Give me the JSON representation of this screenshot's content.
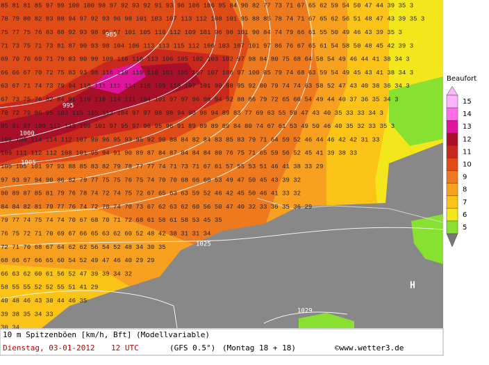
{
  "map": {
    "grid_rows": [
      "85 81 81 85 97 99 100 100 98 97 92 93 92 91 93 96 106 106 95 84 90 82 77 73 71 67 65 62 59 54 50 47 44 39 35 3",
      "78 79 80 82 83 88 94 97 92 93 96 98 101 103 107 113 112 108 101 95 88 85 78 74 71 67 65 62 56 51 48 47 43 39 35 3",
      "75 77 75 76 83 88 92 93 98 95 97 101 105 110 112 109 101 96 98 101 90 84 74 79 66 61 55 50 49 46 43 39 35 3",
      "71 73 75 71 73 81 87 90 93 98 104 106 113 113 115 112 106 103 107 101 97 86 76 67 65 61 54 58 50 48 45 42 39 3",
      "69 70 70 69 71 79 83 90 99 109 116 116 113 106 105 102 103 102 97 98 84 80 75 68 64 58 54 49 46 44 41 38 34 3",
      "66 66 67 70 72 75 83 93 98 116 119 119 110 101 105 107 107 106 97 100 85 79 74 68 63 59 54 49 45 43 41 38 34 3",
      "63 67 71 74 73 79 94 110 111 111 114 116 109 110 107 101 99 98 95 92 80 79 74 74 63 58 52 47 43 40 38 36 34 3",
      "67 73 75 76 82 84 91 110 118 114 111 104 101 97 97 96 98 94 92 88 86 79 72 65 60 54 49 44 40 37 36 35 34 3",
      "70 72 79 86 95 103 115 115 112 104 97 97 98 98 94 90 96 94 89 83 77 69 63 55 50 47 43 40 35 33 33 34 3",
      "85 91 97 109 112 113 108 101 97 95 97 96 95 96 91 89 89 89 89 84 80 74 67 61 53 49 50 46 40 35 32 33 35 3",
      "109 108 114 114 112 107 99 96 95 93 95 92 90 88 84 82 84 83 85 83 79 71 64 59 52 46 44 46 42 42 31 33",
      "109 111 112 112 108 101 95 94 91 90 89 87 84 87 84 84 84 80 76 75 71 65 59 56 52 45 41 39 38 33",
      "105 105 101 97 93 88 85 83 82 79 78 77 77 74 71 73 71 67 61 57 55 53 51 46 41 38 33 29",
      "97 93 97 94 90 86 82 79 77 75 75 76 75 74 70 70 68 66 60 53 49 47 50 45 43 39 32",
      "90 89 87 85 81 79 76 78 74 72 74 75 72 67 65 63 63 59 52 46 42 45 50 46 41 33 32",
      "84 84 82 81 79 77 76 74 72 70 74 70 73 67 62 63 62 60 56 50 47 40 32 33 36 35 36 29",
      "79 77 74 75 74 74 70 67 68 70 71 72 68 61 58 61 58 53 45 35",
      "76 75 72 71 70 69 67 66 65 63 62 60 52 48 42 38 31 31 34",
      "72 71 70 68 67 64 62 62 56 54 52 48 34 30 35",
      "68 66 67 66 65 60 54 52 49 47 46 40 29 29",
      "66 63 62 60 61 56 52 47 39 39 34 32",
      "58 55 55 52 52 55 51 41 29",
      "40 48 46 43 38 44 46 35",
      "39 38 35 34 33",
      "30 34"
    ],
    "isobar_labels": [
      "985",
      "995",
      "1000",
      "1005",
      "1025",
      "1029"
    ],
    "pressure_center": "H"
  },
  "legend": {
    "title": "Beaufort",
    "levels": [
      15,
      14,
      13,
      12,
      11,
      10,
      9,
      8,
      7,
      6,
      5
    ],
    "colors": [
      "#ffb4ff",
      "#ff6ee6",
      "#e0149a",
      "#a8102a",
      "#c8281e",
      "#e04c18",
      "#ee7a20",
      "#f8a020",
      "#fcc418",
      "#f4e61c",
      "#88e030"
    ]
  },
  "footer": {
    "title": "10 m Spitzenböen [km/h, Bft] (Modellvariable)",
    "date": "Dienstag, 03-01-2012",
    "time": "12 UTC",
    "model": "(GFS 0.5°)",
    "run": "(Montag 18 + 18)",
    "source": "©www.wetter3.de"
  }
}
